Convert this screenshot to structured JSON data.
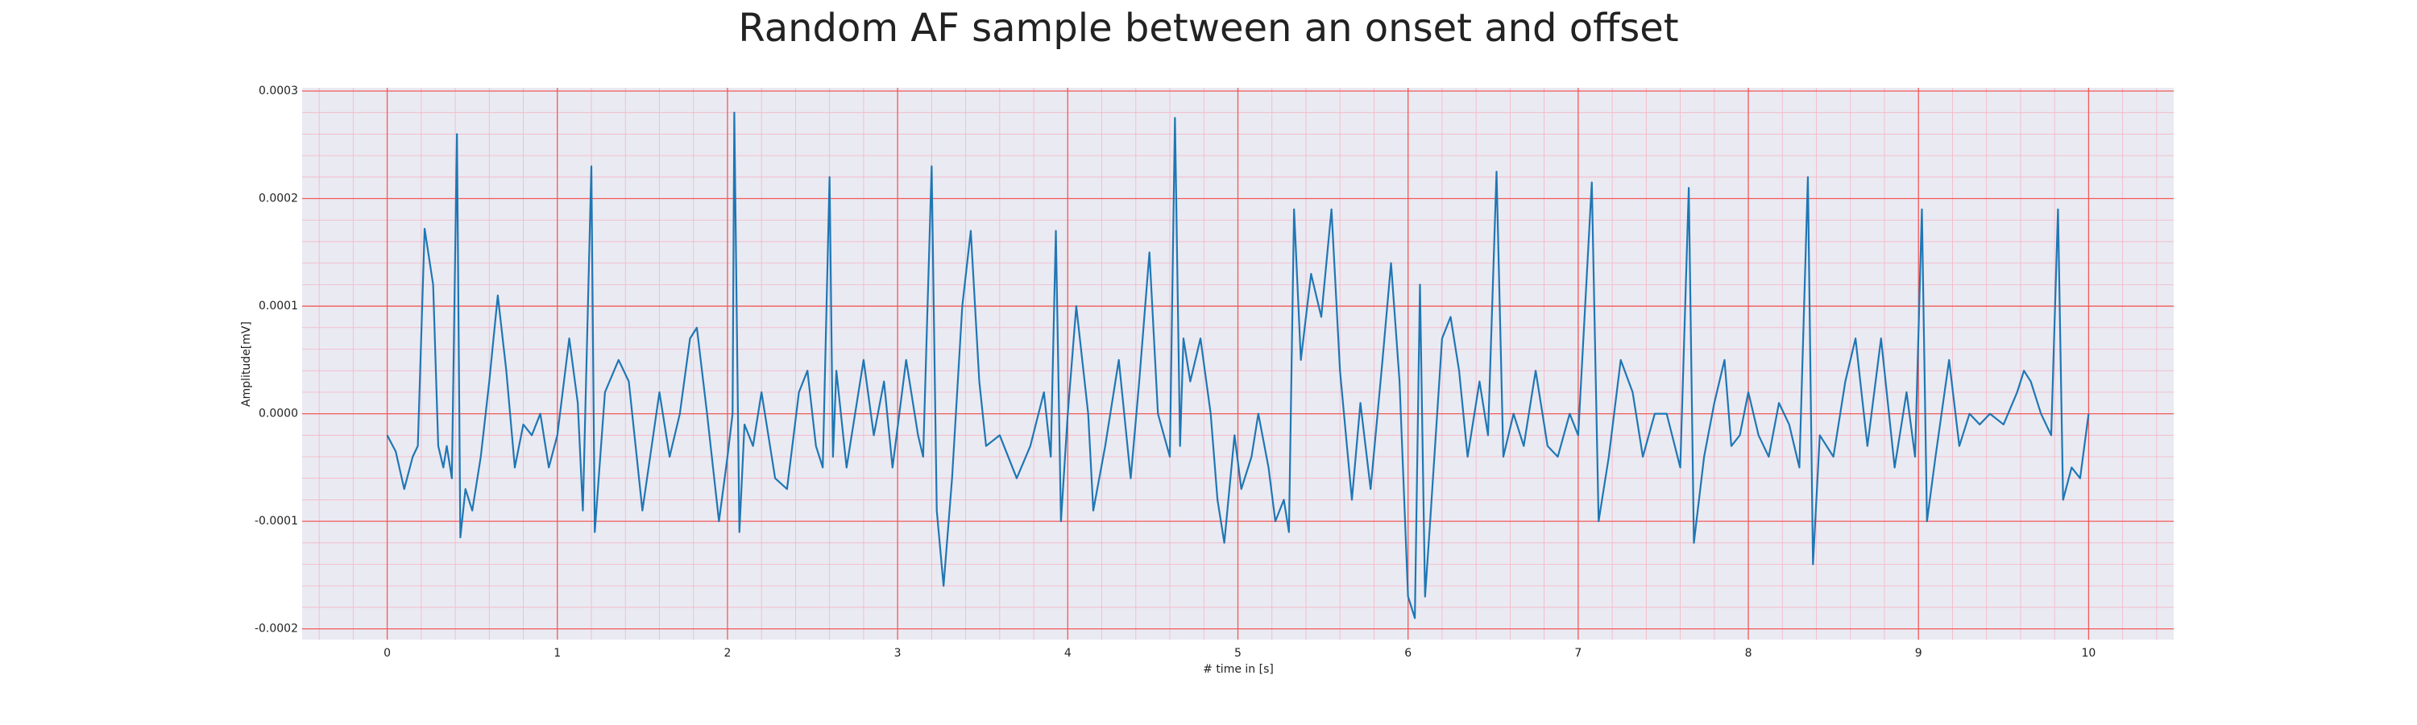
{
  "chart_data": {
    "type": "line",
    "title": "Random AF sample between an onset and offset",
    "xlabel": "# time in [s]",
    "ylabel": "Amplitude[mV]",
    "color": "#1f77b4",
    "grid": true,
    "minor_grid": true,
    "xlim": [
      -0.5,
      10.5
    ],
    "xticks": [
      0,
      1,
      2,
      3,
      4,
      5,
      6,
      7,
      8,
      9,
      10
    ],
    "ylim": [
      -0.00021,
      0.000303
    ],
    "yticks": [
      -0.0002,
      -0.0001,
      {
        "value": 0,
        "label": "0.0000"
      },
      0.0001,
      0.0002,
      0.0003
    ],
    "x": [
      0,
      0.05,
      0.1,
      0.15,
      0.18,
      0.22,
      0.27,
      0.3,
      0.33,
      0.35,
      0.38,
      0.41,
      0.43,
      0.46,
      0.5,
      0.55,
      0.6,
      0.65,
      0.7,
      0.75,
      0.8,
      0.85,
      0.9,
      0.95,
      1.0,
      1.07,
      1.12,
      1.15,
      1.2,
      1.22,
      1.28,
      1.36,
      1.42,
      1.5,
      1.6,
      1.66,
      1.72,
      1.78,
      1.82,
      1.88,
      1.95,
      2.0,
      2.03,
      2.04,
      2.07,
      2.1,
      2.15,
      2.2,
      2.28,
      2.35,
      2.42,
      2.47,
      2.52,
      2.56,
      2.6,
      2.62,
      2.64,
      2.7,
      2.75,
      2.8,
      2.86,
      2.92,
      2.97,
      3.05,
      3.12,
      3.15,
      3.2,
      3.23,
      3.27,
      3.32,
      3.38,
      3.43,
      3.48,
      3.52,
      3.6,
      3.7,
      3.78,
      3.86,
      3.9,
      3.93,
      3.96,
      4.0,
      4.05,
      4.12,
      4.15,
      4.22,
      4.3,
      4.37,
      4.42,
      4.48,
      4.53,
      4.6,
      4.63,
      4.66,
      4.68,
      4.72,
      4.78,
      4.84,
      4.88,
      4.92,
      4.98,
      5.02,
      5.08,
      5.12,
      5.18,
      5.22,
      5.27,
      5.3,
      5.33,
      5.37,
      5.43,
      5.49,
      5.55,
      5.6,
      5.67,
      5.72,
      5.78,
      5.85,
      5.9,
      5.95,
      6.0,
      6.04,
      6.07,
      6.1,
      6.13,
      6.2,
      6.25,
      6.3,
      6.35,
      6.42,
      6.47,
      6.52,
      6.56,
      6.62,
      6.68,
      6.75,
      6.82,
      6.88,
      6.95,
      7.0,
      7.08,
      7.12,
      7.18,
      7.25,
      7.32,
      7.38,
      7.45,
      7.52,
      7.6,
      7.65,
      7.68,
      7.74,
      7.8,
      7.86,
      7.9,
      7.95,
      8.0,
      8.06,
      8.12,
      8.18,
      8.24,
      8.3,
      8.35,
      8.38,
      8.42,
      8.5,
      8.57,
      8.63,
      8.7,
      8.78,
      8.86,
      8.93,
      8.98,
      9.02,
      9.05,
      9.1,
      9.18,
      9.24,
      9.3,
      9.36,
      9.42,
      9.5,
      9.58,
      9.62,
      9.66,
      9.72,
      9.78,
      9.82,
      9.85,
      9.9,
      9.95,
      10.0
    ],
    "values": [
      -2e-05,
      -3.5e-05,
      -7e-05,
      -4e-05,
      -3e-05,
      0.000172,
      0.00012,
      -3e-05,
      -5e-05,
      -3e-05,
      -6e-05,
      0.00026,
      -0.000115,
      -7e-05,
      -9e-05,
      -4e-05,
      3e-05,
      0.00011,
      4e-05,
      -5e-05,
      -1e-05,
      -2e-05,
      0,
      -5e-05,
      -2e-05,
      7e-05,
      1e-05,
      -9e-05,
      0.00023,
      -0.00011,
      2e-05,
      5e-05,
      3e-05,
      -9e-05,
      2e-05,
      -4e-05,
      0,
      7e-05,
      8e-05,
      0,
      -0.0001,
      -4e-05,
      0,
      0.00028,
      -0.00011,
      -1e-05,
      -3e-05,
      2e-05,
      -6e-05,
      -7e-05,
      2e-05,
      4e-05,
      -3e-05,
      -5e-05,
      0.00022,
      -4e-05,
      4e-05,
      -5e-05,
      0,
      5e-05,
      -2e-05,
      3e-05,
      -5e-05,
      5e-05,
      -2e-05,
      -4e-05,
      0.00023,
      -9e-05,
      -0.00016,
      -6e-05,
      0.0001,
      0.00017,
      3e-05,
      -3e-05,
      -2e-05,
      -6e-05,
      -3e-05,
      2e-05,
      -4e-05,
      0.00017,
      -0.0001,
      0,
      0.0001,
      0,
      -9e-05,
      -3e-05,
      5e-05,
      -6e-05,
      3e-05,
      0.00015,
      0,
      -4e-05,
      0.000275,
      -3e-05,
      7e-05,
      3e-05,
      7e-05,
      0,
      -8e-05,
      -0.00012,
      -2e-05,
      -7e-05,
      -4e-05,
      0,
      -5e-05,
      -0.0001,
      -8e-05,
      -0.00011,
      0.00019,
      5e-05,
      0.00013,
      9e-05,
      0.00019,
      4e-05,
      -8e-05,
      1e-05,
      -7e-05,
      5e-05,
      0.00014,
      3e-05,
      -0.00017,
      -0.00019,
      0.00012,
      -0.00017,
      -0.0001,
      7e-05,
      9e-05,
      4e-05,
      -4e-05,
      3e-05,
      -2e-05,
      0.000225,
      -4e-05,
      0,
      -3e-05,
      4e-05,
      -3e-05,
      -4e-05,
      0,
      -2e-05,
      0.000215,
      -0.0001,
      -4e-05,
      5e-05,
      2e-05,
      -4e-05,
      0,
      0,
      -5e-05,
      0.00021,
      -0.00012,
      -4e-05,
      1e-05,
      5e-05,
      -3e-05,
      -2e-05,
      2e-05,
      -2e-05,
      -4e-05,
      1e-05,
      -1e-05,
      -5e-05,
      0.00022,
      -0.00014,
      -2e-05,
      -4e-05,
      3e-05,
      7e-05,
      -3e-05,
      7e-05,
      -5e-05,
      2e-05,
      -4e-05,
      0.00019,
      -0.0001,
      -4e-05,
      5e-05,
      -3e-05,
      0,
      -1e-05,
      0,
      -1e-05,
      2e-05,
      4e-05,
      3e-05,
      0,
      -2e-05,
      0.00019,
      -8e-05,
      -5e-05,
      -6e-05,
      0
    ]
  }
}
